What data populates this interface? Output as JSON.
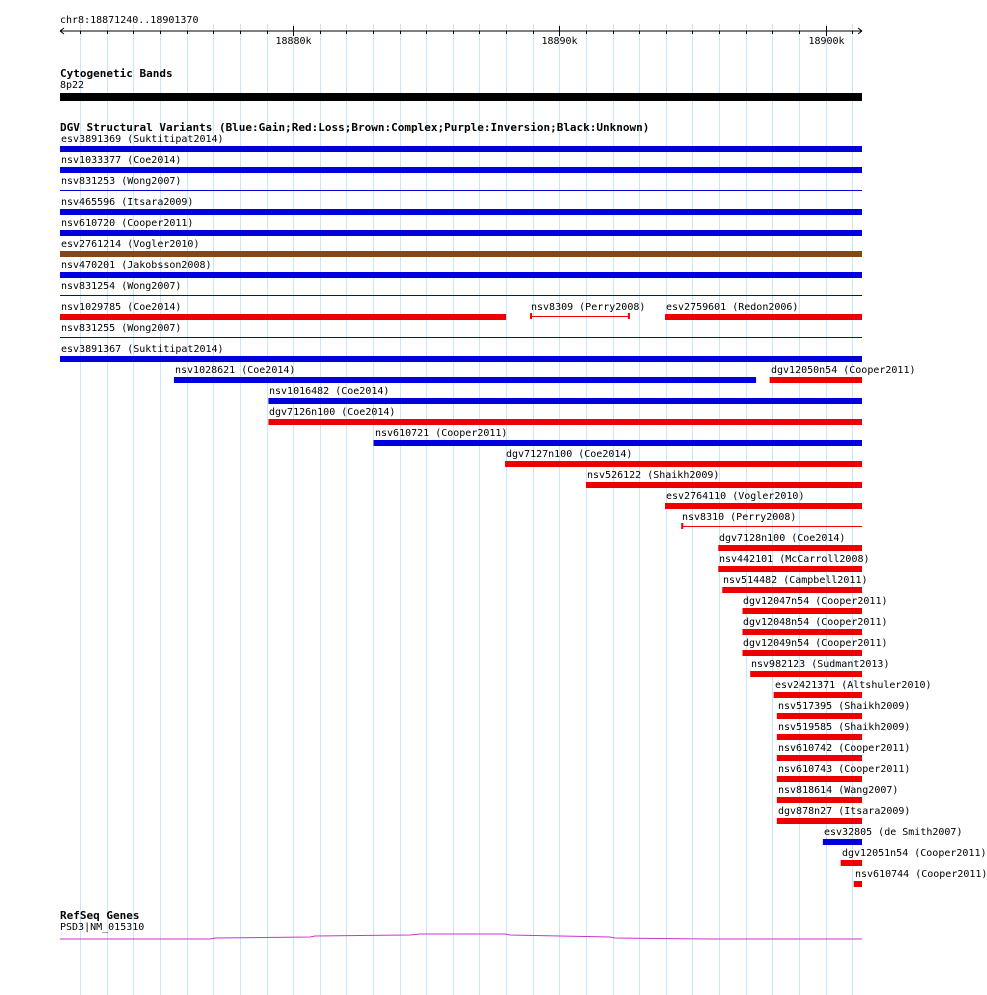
{
  "ruler": {
    "coords": "chr8:18871240..18901370",
    "ticks": [
      {
        "label": "18880k",
        "pos": 18880000
      },
      {
        "label": "18890k",
        "pos": 18890000
      },
      {
        "label": "18900k",
        "pos": 18900000
      }
    ],
    "view_start": 18871240,
    "view_end": 18901370
  },
  "tracks": {
    "cytoband": {
      "title": "Cytogenetic Bands",
      "band_label": "8p22",
      "color": "#000000"
    },
    "dgv": {
      "title": "DGV Structural Variants (Blue:Gain;Red:Loss;Brown:Complex;Purple:Inversion;Black:Unknown)",
      "colors": {
        "gain": "#0000dd",
        "loss": "#ee0000",
        "complex": "#8b4513",
        "inversion": "#800080",
        "unknown": "#000000"
      },
      "features": [
        {
          "label": "esv3891369 (Suktitipat2014)",
          "type": "gain",
          "start": 18871240,
          "end": 18901370,
          "row": 0,
          "style": "thick"
        },
        {
          "label": "nsv1033377 (Coe2014)",
          "type": "gain",
          "start": 18871240,
          "end": 18901370,
          "row": 1,
          "style": "thick"
        },
        {
          "label": "nsv831253 (Wong2007)",
          "type": "gain",
          "start": 18871240,
          "end": 18901370,
          "row": 2,
          "style": "thin"
        },
        {
          "label": "nsv465596 (Itsara2009)",
          "type": "gain",
          "start": 18871240,
          "end": 18901370,
          "row": 3,
          "style": "thick"
        },
        {
          "label": "nsv610720 (Cooper2011)",
          "type": "gain",
          "start": 18871240,
          "end": 18901370,
          "row": 4,
          "style": "thick"
        },
        {
          "label": "esv2761214 (Vogler2010)",
          "type": "complex",
          "start": 18871240,
          "end": 18901370,
          "row": 5,
          "style": "thick"
        },
        {
          "label": "nsv470201 (Jakobsson2008)",
          "type": "gain",
          "start": 18871240,
          "end": 18901370,
          "row": 6,
          "style": "thick"
        },
        {
          "label": "nsv831254 (Wong2007)",
          "type": "gain",
          "start": 18871240,
          "end": 18901370,
          "row": 7,
          "style": "thin"
        },
        {
          "label": "nsv1029785 (Coe2014)",
          "type": "loss",
          "start": 18871240,
          "end": 18888000,
          "row": 8,
          "style": "thick"
        },
        {
          "label": "nsv8309 (Perry2008)",
          "type": "loss",
          "start": 18888900,
          "end": 18892650,
          "row": 8,
          "style": "capped"
        },
        {
          "label": "esv2759601 (Redon2006)",
          "type": "loss",
          "start": 18893970,
          "end": 18901370,
          "row": 8,
          "style": "thick"
        },
        {
          "label": "nsv831255 (Wong2007)",
          "type": "gain",
          "start": 18871240,
          "end": 18901370,
          "row": 9,
          "style": "thin"
        },
        {
          "label": "esv3891367 (Suktitipat2014)",
          "type": "gain",
          "start": 18871240,
          "end": 18901370,
          "row": 10,
          "style": "thick"
        },
        {
          "label": "nsv1028621 (Coe2014)",
          "type": "gain",
          "start": 18875520,
          "end": 18897390,
          "row": 11,
          "style": "thick"
        },
        {
          "label": "dgv12050n54 (Cooper2011)",
          "type": "loss",
          "start": 18897900,
          "end": 18901370,
          "row": 11,
          "style": "thick"
        },
        {
          "label": "nsv1016482 (Coe2014)",
          "type": "gain",
          "start": 18879070,
          "end": 18901370,
          "row": 12,
          "style": "thick"
        },
        {
          "label": "dgv7126n100 (Coe2014)",
          "type": "loss",
          "start": 18879070,
          "end": 18901370,
          "row": 13,
          "style": "thick"
        },
        {
          "label": "nsv610721 (Cooper2011)",
          "type": "gain",
          "start": 18883020,
          "end": 18901370,
          "row": 14,
          "style": "thick"
        },
        {
          "label": "dgv7127n100 (Coe2014)",
          "type": "loss",
          "start": 18887960,
          "end": 18901370,
          "row": 15,
          "style": "thick"
        },
        {
          "label": "nsv526122 (Shaikh2009)",
          "type": "loss",
          "start": 18891000,
          "end": 18901370,
          "row": 16,
          "style": "thick"
        },
        {
          "label": "esv2764110 (Vogler2010)",
          "type": "loss",
          "start": 18893970,
          "end": 18901370,
          "row": 17,
          "style": "thick"
        },
        {
          "label": "nsv8310 (Perry2008)",
          "type": "loss",
          "start": 18894580,
          "end": 18901370,
          "row": 18,
          "style": "capped"
        },
        {
          "label": "dgv7128n100 (Coe2014)",
          "type": "loss",
          "start": 18895970,
          "end": 18901370,
          "row": 19,
          "style": "thick"
        },
        {
          "label": "nsv442101 (McCarroll2008)",
          "type": "loss",
          "start": 18895970,
          "end": 18901370,
          "row": 20,
          "style": "thick"
        },
        {
          "label": "nsv514482 (Campbell2011)",
          "type": "loss",
          "start": 18896120,
          "end": 18901370,
          "row": 21,
          "style": "thick"
        },
        {
          "label": "dgv12047n54 (Cooper2011)",
          "type": "loss",
          "start": 18896880,
          "end": 18901370,
          "row": 22,
          "style": "thick"
        },
        {
          "label": "dgv12048n54 (Cooper2011)",
          "type": "loss",
          "start": 18896880,
          "end": 18901370,
          "row": 23,
          "style": "thick"
        },
        {
          "label": "dgv12049n54 (Cooper2011)",
          "type": "loss",
          "start": 18896880,
          "end": 18901370,
          "row": 24,
          "style": "thick"
        },
        {
          "label": "nsv982123 (Sudmant2013)",
          "type": "loss",
          "start": 18897170,
          "end": 18901370,
          "row": 25,
          "style": "thick"
        },
        {
          "label": "esv2421371 (Altshuler2010)",
          "type": "loss",
          "start": 18898050,
          "end": 18901370,
          "row": 26,
          "style": "thick"
        },
        {
          "label": "nsv517395 (Shaikh2009)",
          "type": "loss",
          "start": 18898170,
          "end": 18901370,
          "row": 27,
          "style": "thick"
        },
        {
          "label": "nsv519585 (Shaikh2009)",
          "type": "loss",
          "start": 18898170,
          "end": 18901370,
          "row": 28,
          "style": "thick"
        },
        {
          "label": "nsv610742 (Cooper2011)",
          "type": "loss",
          "start": 18898170,
          "end": 18901370,
          "row": 29,
          "style": "thick"
        },
        {
          "label": "nsv610743 (Cooper2011)",
          "type": "loss",
          "start": 18898170,
          "end": 18901370,
          "row": 30,
          "style": "thick"
        },
        {
          "label": "nsv818614 (Wang2007)",
          "type": "loss",
          "start": 18898170,
          "end": 18901370,
          "row": 31,
          "style": "thick"
        },
        {
          "label": "dgv878n27 (Itsara2009)",
          "type": "loss",
          "start": 18898170,
          "end": 18901370,
          "row": 32,
          "style": "thick"
        },
        {
          "label": "esv32805 (de Smith2007)",
          "type": "gain",
          "start": 18899900,
          "end": 18901370,
          "row": 33,
          "style": "thick"
        },
        {
          "label": "dgv12051n54 (Cooper2011)",
          "type": "loss",
          "start": 18900570,
          "end": 18901370,
          "row": 34,
          "style": "thick"
        },
        {
          "label": "nsv610744 (Cooper2011)",
          "type": "loss",
          "start": 18901060,
          "end": 18901370,
          "row": 35,
          "style": "thick"
        }
      ]
    },
    "refseq": {
      "title": "RefSeq Genes",
      "gene_label": "PSD3|NM_015310",
      "color": "#cc33cc"
    }
  }
}
